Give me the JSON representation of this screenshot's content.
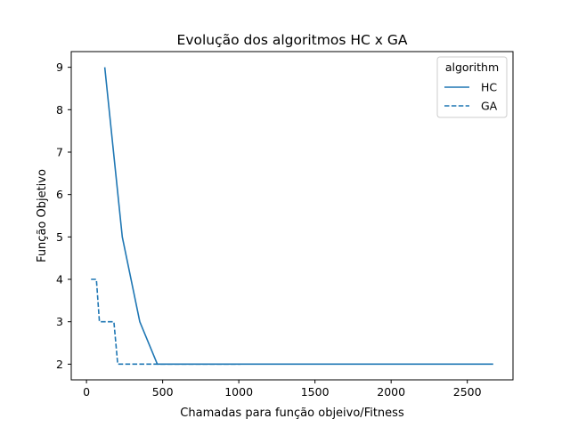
{
  "chart_data": {
    "type": "line",
    "title": "Evolução dos algoritmos HC x GA",
    "xlabel": "Chamadas para função objeivo/Fitness",
    "ylabel": "Função Objetivo",
    "xlim": [
      -100,
      2800
    ],
    "ylim": [
      1.63,
      9.37
    ],
    "xticks": [
      0,
      500,
      1000,
      1500,
      2000,
      2500
    ],
    "yticks": [
      2,
      3,
      4,
      5,
      6,
      7,
      8,
      9
    ],
    "grid": false,
    "legend": {
      "title": "algorithm",
      "placement": "top-right"
    },
    "colors": {
      "series": "#1f77b4"
    },
    "series": [
      {
        "name": "HC",
        "style": "solid",
        "x": [
          120,
          235,
          350,
          465,
          2670
        ],
        "y": [
          9,
          5,
          3,
          2,
          2
        ]
      },
      {
        "name": "GA",
        "style": "dashed",
        "x": [
          30,
          65,
          85,
          110,
          180,
          205,
          1010
        ],
        "y": [
          4,
          4,
          3,
          3,
          3,
          2,
          2
        ]
      }
    ]
  }
}
